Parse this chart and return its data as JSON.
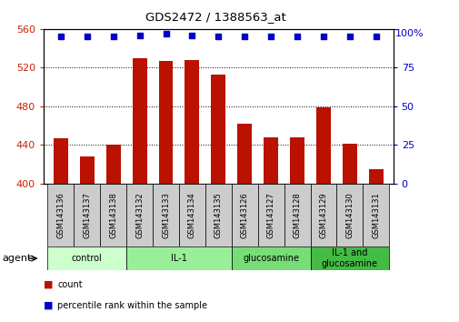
{
  "title": "GDS2472 / 1388563_at",
  "samples": [
    "GSM143136",
    "GSM143137",
    "GSM143138",
    "GSM143132",
    "GSM143133",
    "GSM143134",
    "GSM143135",
    "GSM143126",
    "GSM143127",
    "GSM143128",
    "GSM143129",
    "GSM143130",
    "GSM143131"
  ],
  "counts": [
    447,
    428,
    440,
    530,
    527,
    528,
    513,
    462,
    448,
    448,
    479,
    441,
    415
  ],
  "percentiles": [
    95,
    95,
    95,
    96,
    97,
    96,
    95,
    95,
    95,
    95,
    95,
    95,
    95
  ],
  "bar_color": "#bb1100",
  "dot_color": "#0000cc",
  "ylim_left": [
    400,
    560
  ],
  "ylim_right": [
    0,
    100
  ],
  "yticks_left": [
    400,
    440,
    480,
    520,
    560
  ],
  "yticks_right": [
    0,
    25,
    50,
    75,
    100
  ],
  "groups": [
    {
      "label": "control",
      "start": 0,
      "end": 3,
      "color": "#ccffcc"
    },
    {
      "label": "IL-1",
      "start": 3,
      "end": 7,
      "color": "#99ee99"
    },
    {
      "label": "glucosamine",
      "start": 7,
      "end": 10,
      "color": "#77dd77"
    },
    {
      "label": "IL-1 and\nglucosamine",
      "start": 10,
      "end": 13,
      "color": "#44bb44"
    }
  ],
  "agent_label": "agent",
  "legend_count": "count",
  "legend_percentile": "percentile rank within the sample",
  "background_color": "#ffffff",
  "sample_bg_color": "#cccccc",
  "bar_width": 0.55
}
